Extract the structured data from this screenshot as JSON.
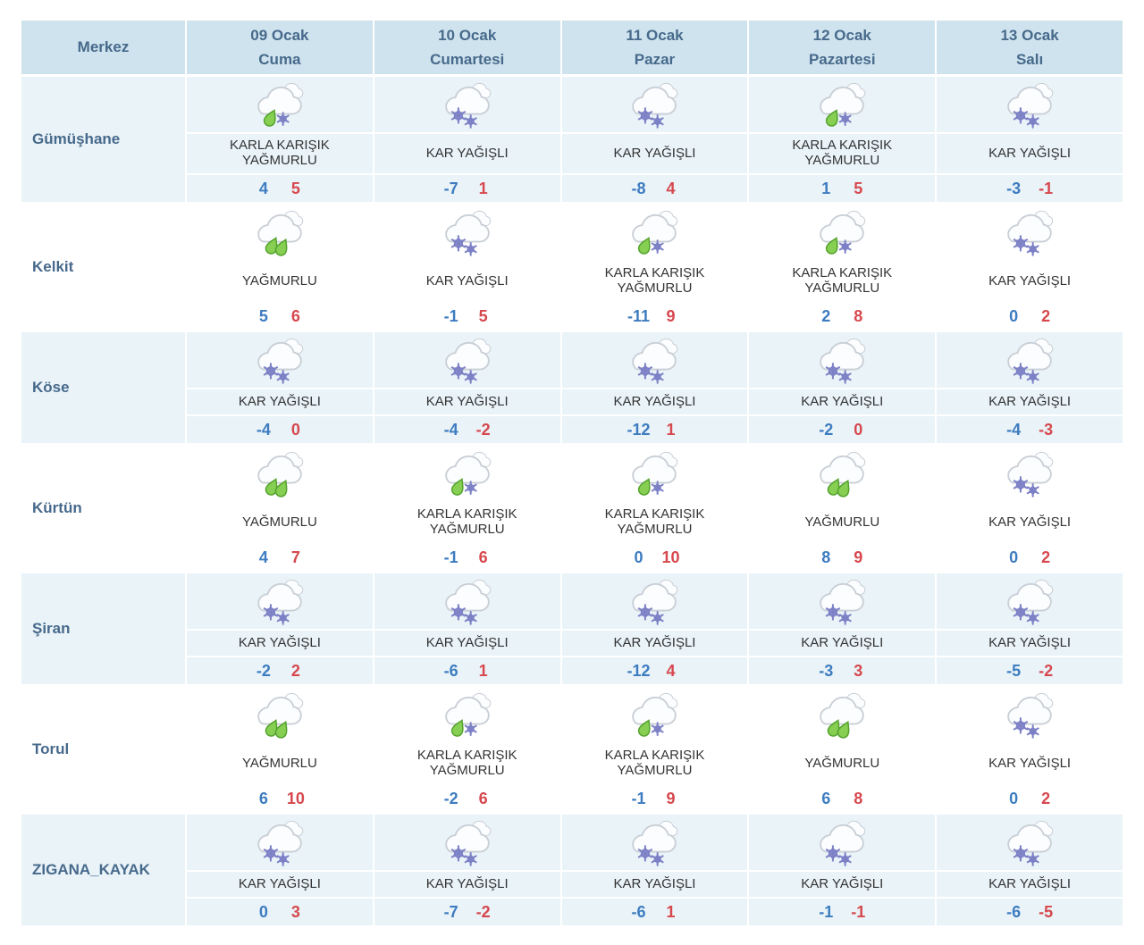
{
  "table": {
    "corner_header": "Merkez",
    "days": [
      {
        "date": "09 Ocak",
        "day": "Cuma"
      },
      {
        "date": "10 Ocak",
        "day": "Cumartesi"
      },
      {
        "date": "11 Ocak",
        "day": "Pazar"
      },
      {
        "date": "12 Ocak",
        "day": "Pazartesi"
      },
      {
        "date": "13 Ocak",
        "day": "Salı"
      }
    ],
    "rows": [
      {
        "location": "Gümüşhane",
        "cells": [
          {
            "icon": "sleet",
            "condition": "KARLA KARIŞIK YAĞMURLU",
            "min": 4,
            "max": 5
          },
          {
            "icon": "snow",
            "condition": "KAR YAĞIŞLI",
            "min": -7,
            "max": 1
          },
          {
            "icon": "snow",
            "condition": "KAR YAĞIŞLI",
            "min": -8,
            "max": 4
          },
          {
            "icon": "sleet",
            "condition": "KARLA KARIŞIK YAĞMURLU",
            "min": 1,
            "max": 5
          },
          {
            "icon": "snow",
            "condition": "KAR YAĞIŞLI",
            "min": -3,
            "max": -1
          }
        ]
      },
      {
        "location": "Kelkit",
        "cells": [
          {
            "icon": "rain",
            "condition": "YAĞMURLU",
            "min": 5,
            "max": 6
          },
          {
            "icon": "snow",
            "condition": "KAR YAĞIŞLI",
            "min": -1,
            "max": 5
          },
          {
            "icon": "sleet",
            "condition": "KARLA KARIŞIK YAĞMURLU",
            "min": -11,
            "max": 9
          },
          {
            "icon": "sleet",
            "condition": "KARLA KARIŞIK YAĞMURLU",
            "min": 2,
            "max": 8
          },
          {
            "icon": "snow",
            "condition": "KAR YAĞIŞLI",
            "min": 0,
            "max": 2
          }
        ]
      },
      {
        "location": "Köse",
        "cells": [
          {
            "icon": "snow",
            "condition": "KAR YAĞIŞLI",
            "min": -4,
            "max": 0
          },
          {
            "icon": "snow",
            "condition": "KAR YAĞIŞLI",
            "min": -4,
            "max": -2
          },
          {
            "icon": "snow",
            "condition": "KAR YAĞIŞLI",
            "min": -12,
            "max": 1
          },
          {
            "icon": "snow",
            "condition": "KAR YAĞIŞLI",
            "min": -2,
            "max": 0
          },
          {
            "icon": "snow",
            "condition": "KAR YAĞIŞLI",
            "min": -4,
            "max": -3
          }
        ]
      },
      {
        "location": "Kürtün",
        "cells": [
          {
            "icon": "rain",
            "condition": "YAĞMURLU",
            "min": 4,
            "max": 7
          },
          {
            "icon": "sleet",
            "condition": "KARLA KARIŞIK YAĞMURLU",
            "min": -1,
            "max": 6
          },
          {
            "icon": "sleet",
            "condition": "KARLA KARIŞIK YAĞMURLU",
            "min": 0,
            "max": 10
          },
          {
            "icon": "rain",
            "condition": "YAĞMURLU",
            "min": 8,
            "max": 9
          },
          {
            "icon": "snow",
            "condition": "KAR YAĞIŞLI",
            "min": 0,
            "max": 2
          }
        ]
      },
      {
        "location": "Şiran",
        "cells": [
          {
            "icon": "snow",
            "condition": "KAR YAĞIŞLI",
            "min": -2,
            "max": 2
          },
          {
            "icon": "snow",
            "condition": "KAR YAĞIŞLI",
            "min": -6,
            "max": 1
          },
          {
            "icon": "snow",
            "condition": "KAR YAĞIŞLI",
            "min": -12,
            "max": 4
          },
          {
            "icon": "snow",
            "condition": "KAR YAĞIŞLI",
            "min": -3,
            "max": 3
          },
          {
            "icon": "snow",
            "condition": "KAR YAĞIŞLI",
            "min": -5,
            "max": -2
          }
        ]
      },
      {
        "location": "Torul",
        "cells": [
          {
            "icon": "rain",
            "condition": "YAĞMURLU",
            "min": 6,
            "max": 10
          },
          {
            "icon": "sleet",
            "condition": "KARLA KARIŞIK YAĞMURLU",
            "min": -2,
            "max": 6
          },
          {
            "icon": "sleet",
            "condition": "KARLA KARIŞIK YAĞMURLU",
            "min": -1,
            "max": 9
          },
          {
            "icon": "rain",
            "condition": "YAĞMURLU",
            "min": 6,
            "max": 8
          },
          {
            "icon": "snow",
            "condition": "KAR YAĞIŞLI",
            "min": 0,
            "max": 2
          }
        ]
      },
      {
        "location": "ZIGANA_KAYAK",
        "cells": [
          {
            "icon": "snow",
            "condition": "KAR YAĞIŞLI",
            "min": 0,
            "max": 3
          },
          {
            "icon": "snow",
            "condition": "KAR YAĞIŞLI",
            "min": -7,
            "max": -2
          },
          {
            "icon": "snow",
            "condition": "KAR YAĞIŞLI",
            "min": -6,
            "max": 1
          },
          {
            "icon": "snow",
            "condition": "KAR YAĞIŞLI",
            "min": -1,
            "max": -1
          },
          {
            "icon": "snow",
            "condition": "KAR YAĞIŞLI",
            "min": -6,
            "max": -5
          }
        ]
      }
    ],
    "icons": {
      "snow": "snow-icon",
      "rain": "rain-icon",
      "sleet": "sleet-icon"
    },
    "colors": {
      "header_bg": "#cee3ee",
      "row_alt_bg": "#e9f3f8",
      "row_bg": "#ffffff",
      "heading_text": "#47698b",
      "condition_text": "#343434",
      "min_temp": "#3d7cc0",
      "max_temp": "#d6484e",
      "snowflake": "#7d81c6",
      "raindrop_fill": "#86cf52",
      "raindrop_stroke": "#54a22e",
      "cloud_stroke": "#c9cfd6"
    }
  }
}
